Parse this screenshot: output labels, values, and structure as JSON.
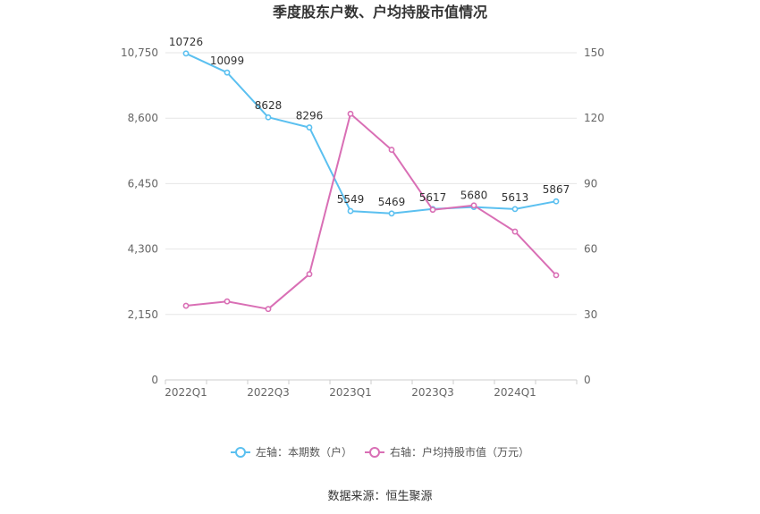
{
  "chart_data": {
    "type": "line",
    "title": "季度股东户数、户均持股市值情况",
    "x": [
      "2022Q1",
      "2022Q2",
      "2022Q3",
      "2022Q4",
      "2023Q1",
      "2023Q2",
      "2023Q3",
      "2023Q4",
      "2024Q1",
      "2024Q2"
    ],
    "x_tick_labels": [
      "2022Q1",
      "",
      "2022Q3",
      "",
      "2023Q1",
      "",
      "2023Q3",
      "",
      "2024Q1",
      ""
    ],
    "y_left": {
      "ticks": [
        "0",
        "2,150",
        "4,300",
        "6,450",
        "8,600",
        "10,750"
      ],
      "ylim": [
        0,
        10750
      ]
    },
    "y_right": {
      "ticks": [
        "0",
        "30",
        "60",
        "90",
        "120",
        "150"
      ],
      "ylim": [
        0,
        150
      ]
    },
    "series": [
      {
        "name": "左轴：本期数（户）",
        "axis": "left",
        "color": "#5bc0f0",
        "values": [
          10726,
          10099,
          8628,
          8296,
          5549,
          5469,
          5617,
          5680,
          5613,
          5867
        ],
        "labels": [
          "10726",
          "10099",
          "8628",
          "8296",
          "5549",
          "5469",
          "5617",
          "5680",
          "5613",
          "5867"
        ]
      },
      {
        "name": "右轴：户均持股市值（万元）",
        "axis": "right",
        "color": "#d96fb5",
        "values": [
          34,
          36,
          32.5,
          48.5,
          122,
          105.5,
          78,
          80,
          68,
          48
        ]
      }
    ],
    "grid": true,
    "legend_position": "bottom",
    "source": "数据来源：恒生聚源"
  }
}
